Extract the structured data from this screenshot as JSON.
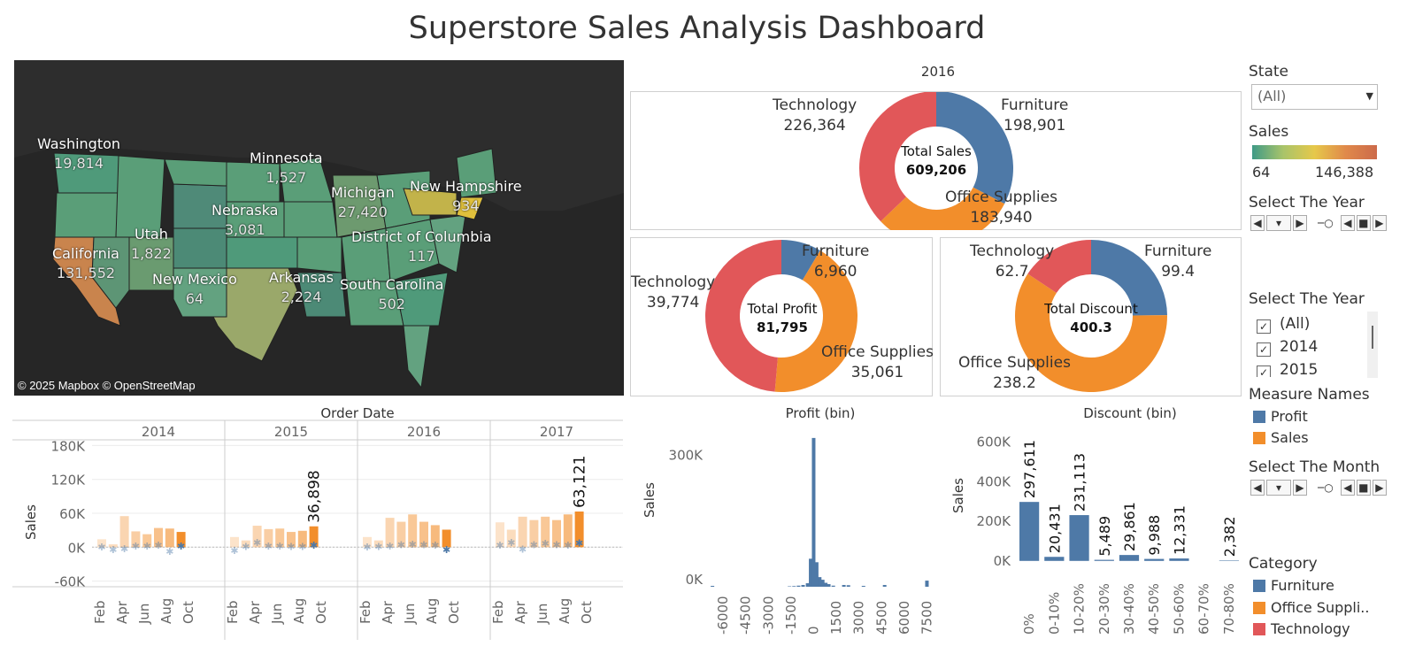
{
  "title": "Superstore Sales Analysis Dashboard",
  "colors": {
    "furniture": "#4e79a7",
    "office": "#f28e2b",
    "technology": "#e15759",
    "profit": "#4e79a7",
    "sales": "#f28e2b"
  },
  "map": {
    "credit": "© 2025 Mapbox © OpenStreetMap",
    "labels": [
      {
        "state": "Washington",
        "value": "19,814"
      },
      {
        "state": "Minnesota",
        "value": "1,527"
      },
      {
        "state": "Michigan",
        "value": "27,420"
      },
      {
        "state": "New Hampshire",
        "value": "934"
      },
      {
        "state": "Nebraska",
        "value": "3,081"
      },
      {
        "state": "Utah",
        "value": "1,822"
      },
      {
        "state": "California",
        "value": "131,552"
      },
      {
        "state": "District of Columbia",
        "value": "117"
      },
      {
        "state": "New Mexico",
        "value": "64"
      },
      {
        "state": "Arkansas",
        "value": "2,224"
      },
      {
        "state": "South Carolina",
        "value": "502"
      }
    ]
  },
  "donut_sales": {
    "title": "2016",
    "center_label": "Total Sales",
    "center_value": "609,206",
    "slices": [
      {
        "name": "Furniture",
        "value": "198,901",
        "num": 198901
      },
      {
        "name": "Office Supplies",
        "value": "183,940",
        "num": 183940
      },
      {
        "name": "Technology",
        "value": "226,364",
        "num": 226364
      }
    ]
  },
  "donut_profit": {
    "center_label": "Total Profit",
    "center_value": "81,795",
    "slices": [
      {
        "name": "Furniture",
        "value": "6,960",
        "num": 6960
      },
      {
        "name": "Office Supplies",
        "value": "35,061",
        "num": 35061
      },
      {
        "name": "Technology",
        "value": "39,774",
        "num": 39774
      }
    ]
  },
  "donut_discount": {
    "center_label": "Total Discount",
    "center_value": "400.3",
    "slices": [
      {
        "name": "Furniture",
        "value": "99.4",
        "num": 99.4
      },
      {
        "name": "Office Supplies",
        "value": "238.2",
        "num": 238.2
      },
      {
        "name": "Technology",
        "value": "62.7",
        "num": 62.7
      }
    ]
  },
  "sidebar": {
    "state_label": "State",
    "state_value": "(All)",
    "sales_label": "Sales",
    "sales_min": "64",
    "sales_max": "146,388",
    "select_year_label": "Select The Year",
    "select_year2_label": "Select The Year",
    "year_options": [
      "(All)",
      "2014",
      "2015"
    ],
    "measure_label": "Measure Names",
    "measures": [
      "Profit",
      "Sales"
    ],
    "select_month_label": "Select The Month",
    "category_label": "Category",
    "categories": [
      "Furniture",
      "Office Suppli..",
      "Technology"
    ]
  },
  "chart_data": [
    {
      "type": "bar",
      "title": "Order Date",
      "ylabel": "Sales",
      "ylim": [
        -70000,
        190000
      ],
      "yticks": [
        "180K",
        "120K",
        "60K",
        "0K",
        "-60K"
      ],
      "years": [
        "2014",
        "2015",
        "2016",
        "2017"
      ],
      "month_ticks": [
        "Feb",
        "Apr",
        "Jun",
        "Aug",
        "Oct"
      ],
      "series": [
        {
          "name": "Sales",
          "values": [
            [
              14000,
              5000,
              55000,
              28000,
              23000,
              34000,
              33000,
              27000
            ],
            [
              18000,
              12000,
              38000,
              32000,
              33000,
              27000,
              29000,
              36898
            ],
            [
              18000,
              12000,
              52000,
              45000,
              58000,
              45000,
              39000,
              31000
            ],
            [
              44000,
              31000,
              54000,
              48000,
              54000,
              48000,
              58000,
              63121
            ]
          ]
        },
        {
          "name": "Profit",
          "values": [
            [
              2000,
              -3000,
              -1000,
              4000,
              4000,
              5000,
              -6000,
              4000
            ],
            [
              -4000,
              3000,
              10000,
              4000,
              4000,
              3000,
              3000,
              5000
            ],
            [
              2000,
              3000,
              4000,
              6000,
              7000,
              6000,
              5000,
              -3000
            ],
            [
              5000,
              10000,
              -2000,
              6000,
              8000,
              6000,
              5000,
              9000
            ]
          ]
        }
      ],
      "data_labels": [
        {
          "year": "2015",
          "value": "36,898"
        },
        {
          "year": "2017",
          "value": "63,121"
        }
      ]
    },
    {
      "type": "bar",
      "title": "Profit (bin)",
      "ylabel": "Sales",
      "xticks": [
        "-6000",
        "-4500",
        "-3000",
        "-1500",
        "0",
        "1500",
        "3000",
        "4500",
        "6000",
        "7500"
      ],
      "yticks": [
        "300K",
        "0K"
      ],
      "ylim": [
        0,
        360000
      ],
      "xlim": [
        -7000,
        8000
      ],
      "x": [
        -6700,
        -1600,
        -1300,
        -1000,
        -700,
        -400,
        -200,
        0,
        200,
        400,
        600,
        800,
        1000,
        1300,
        2000,
        2300,
        3300,
        4700,
        7500
      ],
      "values": [
        2000,
        1000,
        1500,
        2500,
        4000,
        8000,
        64000,
        340000,
        56000,
        22000,
        16000,
        9000,
        6000,
        2500,
        4000,
        3500,
        2000,
        4000,
        14000
      ]
    },
    {
      "type": "bar",
      "title": "Discount (bin)",
      "ylabel": "Sales",
      "categories": [
        "0%",
        "0-10%",
        "10-20%",
        "20-30%",
        "30-40%",
        "40-50%",
        "50-60%",
        "60-70%",
        "70-80%"
      ],
      "values": [
        297611,
        20431,
        231113,
        5489,
        29861,
        9988,
        12331,
        0,
        2382
      ],
      "labels": [
        "297,611",
        "20,431",
        "231,113",
        "5,489",
        "29,861",
        "9,988",
        "12,331",
        "",
        "2,382"
      ],
      "yticks": [
        "600K",
        "400K",
        "200K",
        "0K"
      ],
      "ylim": [
        -50000,
        620000
      ]
    }
  ]
}
